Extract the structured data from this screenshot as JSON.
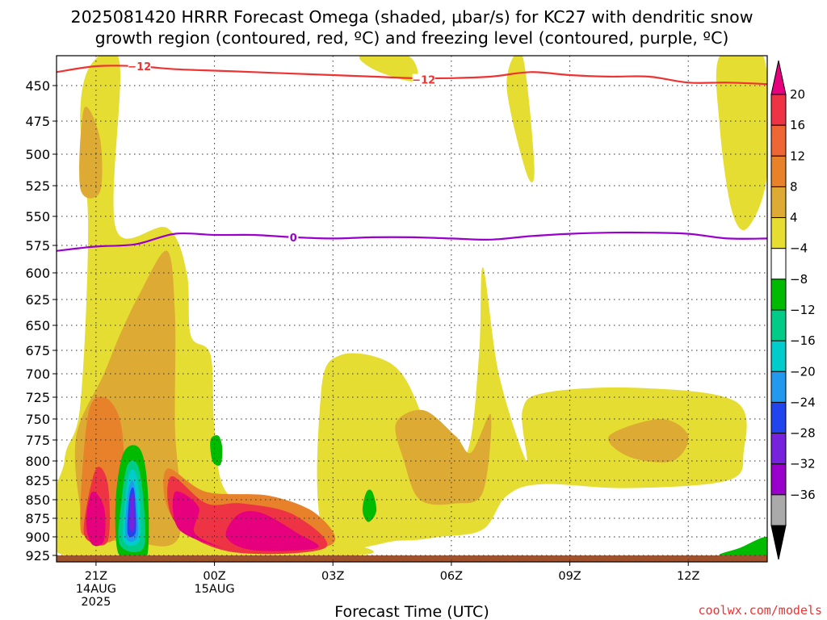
{
  "title": {
    "line1": "2025081420 HRRR Forecast Omega (shaded, μbar/s) for KC27 with dendritic snow",
    "line2": "growth region (contoured, red, ºC) and freezing level (contoured, purple, ºC)"
  },
  "credit": "coolwx.com/models",
  "colors": {
    "credit": "#ee3333",
    "dgz_contour": "#ee3333",
    "freezing_contour": "#9900cc",
    "ground": "#a0522d",
    "grid": "#333333"
  },
  "chart_data": {
    "type": "heatmap",
    "xlabel": "Forecast Time (UTC)",
    "ylabel": "",
    "x_ticks": [
      {
        "hour": 1,
        "label": "21Z",
        "sub1": "14AUG",
        "sub2": "2025"
      },
      {
        "hour": 4,
        "label": "00Z",
        "sub1": "15AUG",
        "sub2": ""
      },
      {
        "hour": 7,
        "label": "03Z",
        "sub1": "",
        "sub2": ""
      },
      {
        "hour": 10,
        "label": "06Z",
        "sub1": "",
        "sub2": ""
      },
      {
        "hour": 13,
        "label": "09Z",
        "sub1": "",
        "sub2": ""
      },
      {
        "hour": 16,
        "label": "12Z",
        "sub1": "",
        "sub2": ""
      }
    ],
    "xlim_hours": [
      0,
      18
    ],
    "y_pressure_ticks": [
      450,
      475,
      500,
      525,
      550,
      575,
      600,
      625,
      650,
      675,
      700,
      725,
      750,
      775,
      800,
      825,
      850,
      875,
      900,
      925
    ],
    "ylim_hPa": [
      430,
      935
    ],
    "grid": true,
    "colorbar": {
      "labels": [
        "20",
        "16",
        "12",
        "8",
        "4",
        "−4",
        "−8",
        "−12",
        "−16",
        "−20",
        "−24",
        "−28",
        "−32",
        "−36"
      ],
      "colors": [
        "#ee3344",
        "#ee6633",
        "#e8822a",
        "#ddaa33",
        "#e6dd33",
        "#ffffff",
        "#00bb00",
        "#00cc88",
        "#00cccc",
        "#2299ee",
        "#2244ee",
        "#7722dd",
        "#9900cc",
        "#aaaaaa"
      ],
      "top_arrow_color": "#e6007e",
      "bottom_arrow_color": "#000000"
    },
    "contours": [
      {
        "label": "−12",
        "color": "#ee3333",
        "points": [
          [
            0,
            441
          ],
          [
            1,
            437
          ],
          [
            2,
            437
          ],
          [
            3,
            439
          ],
          [
            4,
            440
          ],
          [
            5,
            441
          ],
          [
            6,
            442
          ],
          [
            7,
            443
          ],
          [
            8,
            444
          ],
          [
            9,
            445
          ],
          [
            10,
            445
          ],
          [
            11,
            444
          ],
          [
            12,
            441
          ],
          [
            13,
            443
          ],
          [
            14,
            444
          ],
          [
            15,
            444
          ],
          [
            16,
            448
          ],
          [
            17,
            448
          ],
          [
            18,
            449
          ]
        ],
        "label_positions": [
          [
            2.1,
            437
          ],
          [
            9.3,
            446
          ]
        ]
      },
      {
        "label": "0",
        "color": "#9900cc",
        "points": [
          [
            0,
            580
          ],
          [
            1,
            576
          ],
          [
            2,
            574
          ],
          [
            3,
            565
          ],
          [
            4,
            566
          ],
          [
            5,
            566
          ],
          [
            6,
            568
          ],
          [
            7,
            569
          ],
          [
            8,
            568
          ],
          [
            9,
            568
          ],
          [
            10,
            569
          ],
          [
            11,
            570
          ],
          [
            12,
            567
          ],
          [
            13,
            565
          ],
          [
            14,
            564
          ],
          [
            15,
            564
          ],
          [
            16,
            565
          ],
          [
            17,
            569
          ],
          [
            18,
            569
          ]
        ],
        "label_positions": [
          [
            6,
            568
          ]
        ]
      }
    ],
    "omega_regions": [
      {
        "category": "4 to 8",
        "color": "#e6dd33",
        "points": [
          [
            0.6,
            735
          ],
          [
            0.8,
            560
          ],
          [
            0.6,
            470
          ],
          [
            0.9,
            435
          ],
          [
            1.6,
            435
          ],
          [
            1.5,
            560
          ],
          [
            2.8,
            560
          ],
          [
            3.3,
            600
          ],
          [
            3.4,
            660
          ],
          [
            3.9,
            680
          ],
          [
            4.0,
            760
          ],
          [
            4.3,
            840
          ],
          [
            5.5,
            860
          ],
          [
            7.0,
            900
          ],
          [
            7.6,
            925
          ],
          [
            0.2,
            925
          ],
          [
            0.2,
            800
          ]
        ]
      },
      {
        "category": "4 to 8",
        "color": "#e6dd33",
        "points": [
          [
            6.8,
            900
          ],
          [
            6.7,
            720
          ],
          [
            7.2,
            680
          ],
          [
            8.5,
            690
          ],
          [
            9.2,
            740
          ],
          [
            9.6,
            820
          ],
          [
            10.4,
            790
          ],
          [
            10.7,
            680
          ],
          [
            10.8,
            595
          ],
          [
            11.2,
            700
          ],
          [
            11.9,
            800
          ],
          [
            11.8,
            740
          ],
          [
            12.4,
            720
          ],
          [
            14.7,
            715
          ],
          [
            17.2,
            730
          ],
          [
            17.4,
            790
          ],
          [
            17.0,
            825
          ],
          [
            14.5,
            835
          ],
          [
            12.3,
            830
          ],
          [
            11.4,
            845
          ],
          [
            10.8,
            890
          ],
          [
            9.7,
            900
          ],
          [
            8.7,
            905
          ]
        ]
      },
      {
        "category": "4 to 8",
        "color": "#e6dd33",
        "points": [
          [
            7.7,
            430
          ],
          [
            8.9,
            430
          ],
          [
            9.1,
            447
          ],
          [
            8.1,
            440
          ]
        ]
      },
      {
        "category": "4 to 8",
        "color": "#e6dd33",
        "points": [
          [
            11.4,
            450
          ],
          [
            11.8,
            430
          ],
          [
            12.1,
            510
          ],
          [
            11.9,
            515
          ]
        ]
      },
      {
        "category": "4 to 8",
        "color": "#e6dd33",
        "points": [
          [
            16.8,
            430
          ],
          [
            17.9,
            430
          ],
          [
            18.0,
            515
          ],
          [
            17.5,
            560
          ],
          [
            17.1,
            545
          ],
          [
            16.8,
            480
          ]
        ]
      },
      {
        "category": "8 to 12",
        "color": "#ddaa33",
        "points": [
          [
            0.6,
            860
          ],
          [
            0.5,
            770
          ],
          [
            1.2,
            700
          ],
          [
            1.6,
            660
          ],
          [
            2.1,
            620
          ],
          [
            2.8,
            580
          ],
          [
            3.0,
            640
          ],
          [
            3.0,
            760
          ],
          [
            3.1,
            900
          ],
          [
            1.8,
            905
          ],
          [
            0.9,
            900
          ]
        ]
      },
      {
        "category": "8 to 12",
        "color": "#ddaa33",
        "points": [
          [
            0.6,
            527
          ],
          [
            0.7,
            466
          ],
          [
            1.1,
            488
          ],
          [
            1.1,
            530
          ]
        ]
      },
      {
        "category": "8 to 12",
        "color": "#ddaa33",
        "points": [
          [
            8.6,
            755
          ],
          [
            9.3,
            740
          ],
          [
            10.1,
            770
          ],
          [
            10.5,
            790
          ],
          [
            11.0,
            745
          ],
          [
            10.8,
            840
          ],
          [
            10.1,
            855
          ],
          [
            9.2,
            850
          ],
          [
            8.8,
            800
          ]
        ]
      },
      {
        "category": "8 to 12",
        "color": "#ddaa33",
        "points": [
          [
            14.0,
            770
          ],
          [
            15.3,
            750
          ],
          [
            16.0,
            770
          ],
          [
            15.6,
            800
          ],
          [
            14.5,
            795
          ]
        ]
      },
      {
        "category": "12 to 16",
        "color": "#e8822a",
        "points": [
          [
            0.6,
            875
          ],
          [
            0.8,
            745
          ],
          [
            1.2,
            725
          ],
          [
            1.6,
            750
          ],
          [
            1.7,
            810
          ],
          [
            1.5,
            900
          ],
          [
            0.8,
            900
          ]
        ]
      },
      {
        "category": "12 to 16",
        "color": "#e8822a",
        "points": [
          [
            2.8,
            810
          ],
          [
            2.9,
            870
          ],
          [
            4.2,
            915
          ],
          [
            6.9,
            912
          ],
          [
            6.6,
            870
          ],
          [
            5.4,
            845
          ],
          [
            3.8,
            840
          ]
        ]
      },
      {
        "category": "16 to 20",
        "color": "#ee3344",
        "points": [
          [
            0.7,
            880
          ],
          [
            1.0,
            810
          ],
          [
            1.3,
            830
          ],
          [
            1.3,
            905
          ],
          [
            0.8,
            905
          ]
        ]
      },
      {
        "category": "16 to 20",
        "color": "#ee3344",
        "points": [
          [
            2.9,
            820
          ],
          [
            3.0,
            880
          ],
          [
            4.4,
            920
          ],
          [
            6.8,
            915
          ],
          [
            6.0,
            870
          ],
          [
            4.7,
            855
          ],
          [
            3.8,
            855
          ]
        ]
      },
      {
        "category": "> 20",
        "color": "#e6007e",
        "points": [
          [
            0.75,
            880
          ],
          [
            0.9,
            840
          ],
          [
            1.2,
            860
          ],
          [
            1.2,
            905
          ],
          [
            0.9,
            910
          ]
        ]
      },
      {
        "category": "> 20",
        "color": "#e6007e",
        "points": [
          [
            3.0,
            840
          ],
          [
            3.1,
            890
          ],
          [
            4.2,
            915
          ],
          [
            3.5,
            895
          ],
          [
            3.6,
            860
          ]
        ]
      },
      {
        "category": "> 20",
        "color": "#e6007e",
        "points": [
          [
            4.3,
            900
          ],
          [
            4.6,
            870
          ],
          [
            5.2,
            868
          ],
          [
            6.1,
            895
          ],
          [
            6.6,
            915
          ],
          [
            5.0,
            918
          ]
        ]
      },
      {
        "category": "-4 to -8",
        "color": "#00bb00",
        "points": [
          [
            1.55,
            920
          ],
          [
            1.5,
            850
          ],
          [
            1.7,
            790
          ],
          [
            2.1,
            785
          ],
          [
            2.3,
            830
          ],
          [
            2.3,
            925
          ],
          [
            1.9,
            925
          ]
        ]
      },
      {
        "category": "-8 to -12",
        "color": "#00cc88",
        "points": [
          [
            1.6,
            910
          ],
          [
            1.65,
            850
          ],
          [
            1.8,
            805
          ],
          [
            2.05,
            805
          ],
          [
            2.2,
            850
          ],
          [
            2.2,
            915
          ]
        ]
      },
      {
        "category": "-12 to -16",
        "color": "#00cccc",
        "points": [
          [
            1.7,
            905
          ],
          [
            1.75,
            845
          ],
          [
            1.85,
            815
          ],
          [
            2.0,
            815
          ],
          [
            2.1,
            850
          ],
          [
            2.1,
            905
          ]
        ]
      },
      {
        "category": "-16 to -20",
        "color": "#2299ee",
        "points": [
          [
            1.75,
            900
          ],
          [
            1.8,
            845
          ],
          [
            1.92,
            825
          ],
          [
            2.02,
            850
          ],
          [
            2.05,
            900
          ]
        ]
      },
      {
        "category": "-20 to -24",
        "color": "#2244ee",
        "points": [
          [
            1.8,
            895
          ],
          [
            1.85,
            845
          ],
          [
            1.95,
            835
          ],
          [
            2.0,
            860
          ],
          [
            2.0,
            895
          ]
        ]
      },
      {
        "category": "-24 to -28",
        "color": "#7722dd",
        "points": [
          [
            1.85,
            888
          ],
          [
            1.88,
            850
          ],
          [
            1.95,
            845
          ],
          [
            1.97,
            888
          ]
        ]
      },
      {
        "category": "-4 to -8",
        "color": "#00bb00",
        "points": [
          [
            3.9,
            775
          ],
          [
            4.1,
            770
          ],
          [
            4.2,
            785
          ],
          [
            4.15,
            805
          ],
          [
            3.95,
            800
          ]
        ]
      },
      {
        "category": "-4 to -8",
        "color": "#00bb00",
        "points": [
          [
            7.75,
            865
          ],
          [
            7.85,
            840
          ],
          [
            8.0,
            840
          ],
          [
            8.1,
            865
          ],
          [
            7.9,
            880
          ]
        ]
      },
      {
        "category": "-4 to -8",
        "color": "#00bb00",
        "points": [
          [
            16.8,
            925
          ],
          [
            17.3,
            915
          ],
          [
            18.0,
            900
          ],
          [
            18.0,
            925
          ]
        ]
      }
    ],
    "ground_band_hPa": [
      925,
      935
    ]
  }
}
